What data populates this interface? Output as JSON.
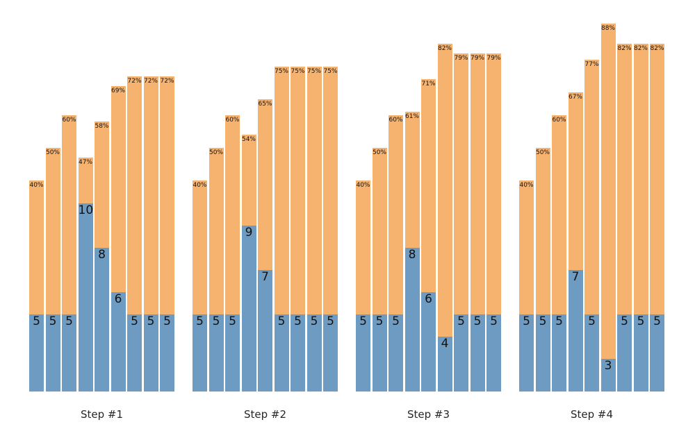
{
  "chart_data": {
    "type": "bar",
    "stacked": true,
    "title": "",
    "xlabel": "",
    "ylabel": "",
    "legend": "none",
    "axes_visible": false,
    "grid": false,
    "categories": [
      "Step #1",
      "Step #2",
      "Step #3",
      "Step #4"
    ],
    "bars_per_group": 9,
    "series_semantics": {
      "bottom_segment": "value (count, printed at top of blue segment)",
      "top_segment": "percent (printed at top of orange segment)"
    },
    "groups": [
      {
        "label": "Step #1",
        "bars": [
          {
            "value": 5,
            "percent": 40
          },
          {
            "value": 5,
            "percent": 50
          },
          {
            "value": 5,
            "percent": 60
          },
          {
            "value": 10,
            "percent": 47
          },
          {
            "value": 8,
            "percent": 58
          },
          {
            "value": 6,
            "percent": 69
          },
          {
            "value": 5,
            "percent": 72
          },
          {
            "value": 5,
            "percent": 72
          },
          {
            "value": 5,
            "percent": 72
          }
        ]
      },
      {
        "label": "Step #2",
        "bars": [
          {
            "value": 5,
            "percent": 40
          },
          {
            "value": 5,
            "percent": 50
          },
          {
            "value": 5,
            "percent": 60
          },
          {
            "value": 9,
            "percent": 54
          },
          {
            "value": 7,
            "percent": 65
          },
          {
            "value": 5,
            "percent": 75
          },
          {
            "value": 5,
            "percent": 75
          },
          {
            "value": 5,
            "percent": 75
          },
          {
            "value": 5,
            "percent": 75
          }
        ]
      },
      {
        "label": "Step #3",
        "bars": [
          {
            "value": 5,
            "percent": 40
          },
          {
            "value": 5,
            "percent": 50
          },
          {
            "value": 5,
            "percent": 60
          },
          {
            "value": 8,
            "percent": 61
          },
          {
            "value": 6,
            "percent": 71
          },
          {
            "value": 4,
            "percent": 82
          },
          {
            "value": 5,
            "percent": 79
          },
          {
            "value": 5,
            "percent": 79
          },
          {
            "value": 5,
            "percent": 79
          }
        ]
      },
      {
        "label": "Step #4",
        "bars": [
          {
            "value": 5,
            "percent": 40
          },
          {
            "value": 5,
            "percent": 50
          },
          {
            "value": 5,
            "percent": 60
          },
          {
            "value": 7,
            "percent": 67
          },
          {
            "value": 5,
            "percent": 77
          },
          {
            "value": 3,
            "percent": 88
          },
          {
            "value": 5,
            "percent": 82
          },
          {
            "value": 5,
            "percent": 82
          },
          {
            "value": 5,
            "percent": 82
          }
        ]
      }
    ],
    "colors": {
      "bottom_segment": "#6e9bc1",
      "top_segment": "#f6b26f",
      "label_text": "#111111",
      "category_label_text": "#262626",
      "background": "#ffffff"
    }
  }
}
